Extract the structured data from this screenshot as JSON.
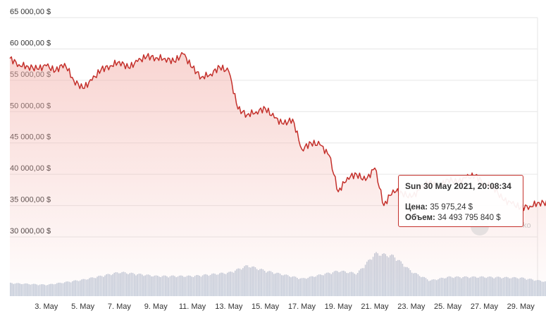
{
  "chart_data": {
    "type": "area",
    "title": "",
    "xlabel": "",
    "ylabel": "",
    "x_range": [
      "2021-05-01",
      "2021-05-30"
    ],
    "ylim": [
      25000,
      65000
    ],
    "grid": true,
    "series_color": "#c4302b",
    "fill_color": "#f3b3ad",
    "volume_color": "#b9c3d4",
    "y_ticks": [
      "65 000,00 $",
      "60 000,00 $",
      "55 000,00 $",
      "50 000,00 $",
      "45 000,00 $",
      "40 000,00 $",
      "35 000,00 $",
      "30 000,00 $"
    ],
    "y_tick_values": [
      65000,
      60000,
      55000,
      50000,
      45000,
      40000,
      35000,
      30000
    ],
    "x_ticks": [
      "3. May",
      "5. May",
      "7. May",
      "9. May",
      "11. May",
      "13. May",
      "15. May",
      "17. May",
      "19. May",
      "21. May",
      "23. May",
      "25. May",
      "27. May",
      "29. May"
    ],
    "x_tick_dates": [
      "2021-05-03",
      "2021-05-05",
      "2021-05-07",
      "2021-05-09",
      "2021-05-11",
      "2021-05-13",
      "2021-05-15",
      "2021-05-17",
      "2021-05-19",
      "2021-05-21",
      "2021-05-23",
      "2021-05-25",
      "2021-05-27",
      "2021-05-29"
    ],
    "price": {
      "x": [
        "2021-05-01",
        "2021-05-01 12:00",
        "2021-05-02",
        "2021-05-02 12:00",
        "2021-05-03",
        "2021-05-03 12:00",
        "2021-05-04",
        "2021-05-04 12:00",
        "2021-05-05",
        "2021-05-05 12:00",
        "2021-05-06",
        "2021-05-06 12:00",
        "2021-05-07",
        "2021-05-07 12:00",
        "2021-05-08",
        "2021-05-08 12:00",
        "2021-05-09",
        "2021-05-09 12:00",
        "2021-05-10",
        "2021-05-10 12:00",
        "2021-05-11",
        "2021-05-11 12:00",
        "2021-05-12",
        "2021-05-12 12:00",
        "2021-05-13",
        "2021-05-13 12:00",
        "2021-05-14",
        "2021-05-14 12:00",
        "2021-05-15",
        "2021-05-15 12:00",
        "2021-05-16",
        "2021-05-16 12:00",
        "2021-05-17",
        "2021-05-17 12:00",
        "2021-05-18",
        "2021-05-18 12:00",
        "2021-05-19",
        "2021-05-19 12:00",
        "2021-05-20",
        "2021-05-20 12:00",
        "2021-05-21",
        "2021-05-21 12:00",
        "2021-05-22",
        "2021-05-22 12:00",
        "2021-05-23",
        "2021-05-23 12:00",
        "2021-05-24",
        "2021-05-24 12:00",
        "2021-05-25",
        "2021-05-25 12:00",
        "2021-05-26",
        "2021-05-26 12:00",
        "2021-05-27",
        "2021-05-27 12:00",
        "2021-05-28",
        "2021-05-28 12:00",
        "2021-05-29",
        "2021-05-29 12:00",
        "2021-05-30",
        "2021-05-30 12:00",
        "2021-05-30 20:08"
      ],
      "y": [
        58500,
        57500,
        57200,
        56800,
        57300,
        56500,
        57700,
        55000,
        53700,
        55000,
        56700,
        57300,
        58000,
        57000,
        58000,
        58800,
        58600,
        58500,
        58000,
        59200,
        57000,
        55500,
        56000,
        57100,
        56400,
        50400,
        49500,
        50000,
        50500,
        49000,
        48000,
        48800,
        44000,
        45000,
        44700,
        43000,
        37200,
        39500,
        40000,
        39000,
        41000,
        35000,
        37500,
        37000,
        36300,
        37600,
        38800,
        37900,
        39200,
        38700,
        39400,
        39800,
        38500,
        38000,
        36000,
        35300,
        34700,
        34900,
        35500,
        35400,
        35975.24
      ]
    },
    "volume": {
      "x": [
        "2021-05-01",
        "2021-05-03",
        "2021-05-05",
        "2021-05-07",
        "2021-05-09",
        "2021-05-11",
        "2021-05-13",
        "2021-05-14",
        "2021-05-15",
        "2021-05-17",
        "2021-05-19",
        "2021-05-20",
        "2021-05-21",
        "2021-05-22",
        "2021-05-23",
        "2021-05-24",
        "2021-05-25",
        "2021-05-27",
        "2021-05-29",
        "2021-05-30 20:08"
      ],
      "y": [
        30,
        26,
        38,
        55,
        46,
        46,
        54,
        70,
        58,
        40,
        58,
        52,
        98,
        92,
        56,
        36,
        44,
        44,
        42,
        30
      ]
    },
    "tooltip": {
      "date": "Sun 30 May 2021, 20:08:34",
      "price_label": "Цена:",
      "price_value": "35 975,24 $",
      "volume_label": "Объем:",
      "volume_value": "34 493 795 840 $"
    },
    "watermark": "ko"
  }
}
